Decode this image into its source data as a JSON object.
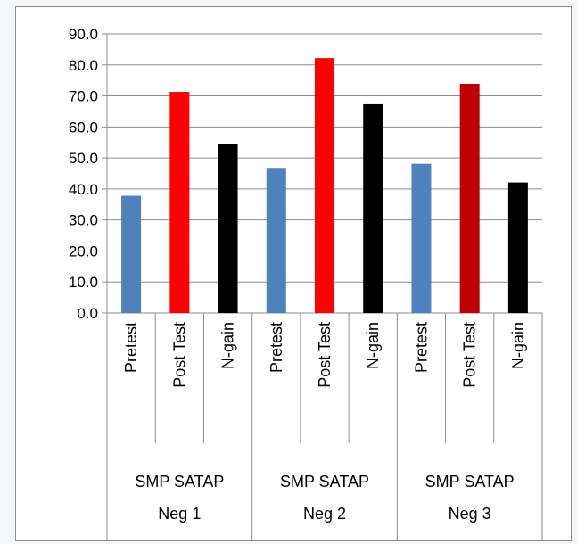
{
  "chart_data": {
    "type": "bar",
    "title": "",
    "xlabel": "",
    "ylabel": "",
    "ylim": [
      0,
      90
    ],
    "yticks": [
      "0.0",
      "10.0",
      "20.0",
      "30.0",
      "40.0",
      "50.0",
      "60.0",
      "70.0",
      "80.0",
      "90.0"
    ],
    "grid": true,
    "legend": "none",
    "groups": [
      {
        "name_line1": "SMP SATAP",
        "name_line2": "Neg 1",
        "bars": [
          {
            "label": "Pretest",
            "value": 37.8,
            "color": "#4f81bd"
          },
          {
            "label": "Post Test",
            "value": 71.3,
            "color": "#ff0000"
          },
          {
            "label": "N-gain",
            "value": 54.6,
            "color": "#000000"
          }
        ]
      },
      {
        "name_line1": "SMP SATAP",
        "name_line2": "Neg 2",
        "bars": [
          {
            "label": "Pretest",
            "value": 46.8,
            "color": "#4f81bd"
          },
          {
            "label": "Post Test",
            "value": 82.2,
            "color": "#ff0000"
          },
          {
            "label": "N-gain",
            "value": 67.3,
            "color": "#000000"
          }
        ]
      },
      {
        "name_line1": "SMP SATAP",
        "name_line2": "Neg 3",
        "bars": [
          {
            "label": "Pretest",
            "value": 48.1,
            "color": "#4f81bd"
          },
          {
            "label": "Post Test",
            "value": 73.9,
            "color": "#c00000"
          },
          {
            "label": "N-gain",
            "value": 42.1,
            "color": "#000000"
          }
        ]
      }
    ]
  }
}
